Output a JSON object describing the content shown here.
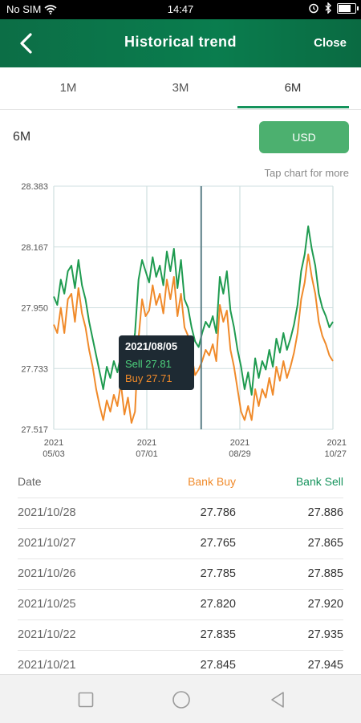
{
  "status_bar": {
    "carrier": "No SIM",
    "time": "14:47",
    "battery_level": 0.85
  },
  "header": {
    "title": "Historical trend",
    "close_label": "Close"
  },
  "tabs": [
    {
      "label": "1M",
      "active": false
    },
    {
      "label": "3M",
      "active": false
    },
    {
      "label": "6M",
      "active": true
    }
  ],
  "controls": {
    "range_label": "6M",
    "currency_label": "USD",
    "hint": "Tap chart for more"
  },
  "tooltip": {
    "date": "2021/08/05",
    "sell_text": "Sell 27.81",
    "buy_text": "Buy 27.71"
  },
  "table": {
    "headers": {
      "date": "Date",
      "buy": "Bank Buy",
      "sell": "Bank Sell"
    },
    "rows": [
      {
        "date": "2021/10/28",
        "buy": "27.786",
        "sell": "27.886"
      },
      {
        "date": "2021/10/27",
        "buy": "27.765",
        "sell": "27.865"
      },
      {
        "date": "2021/10/26",
        "buy": "27.785",
        "sell": "27.885"
      },
      {
        "date": "2021/10/25",
        "buy": "27.820",
        "sell": "27.920"
      },
      {
        "date": "2021/10/22",
        "buy": "27.835",
        "sell": "27.935"
      },
      {
        "date": "2021/10/21",
        "buy": "27.845",
        "sell": "27.945"
      }
    ]
  },
  "colors": {
    "brand_green": "#0a7d4e",
    "sell": "#1f9b50",
    "buy": "#f08a2a",
    "button": "#4cb06f"
  },
  "chart_data": {
    "type": "line",
    "y_ticks": [
      "28.383",
      "28.167",
      "27.950",
      "27.733",
      "27.517"
    ],
    "ylim": [
      27.517,
      28.383
    ],
    "x_ticks": [
      {
        "line1": "2021",
        "line2": "05/03"
      },
      {
        "line1": "2021",
        "line2": "07/01"
      },
      {
        "line1": "2021",
        "line2": "08/29"
      },
      {
        "line1": "2021",
        "line2": "10/27"
      }
    ],
    "x_start": "2021/05/03",
    "x_end": "2021/10/28",
    "selected_date": "2021/08/05",
    "grid": true,
    "series": [
      {
        "key": "sell",
        "color": "#1f9b50",
        "values": [
          27.99,
          27.96,
          28.05,
          28.0,
          28.08,
          28.1,
          28.02,
          28.12,
          28.03,
          27.98,
          27.9,
          27.84,
          27.78,
          27.72,
          27.66,
          27.74,
          27.7,
          27.76,
          27.72,
          27.78,
          27.74,
          27.8,
          27.78,
          27.86,
          28.05,
          28.12,
          28.08,
          28.04,
          28.13,
          28.06,
          28.1,
          28.03,
          28.15,
          28.08,
          28.16,
          28.02,
          28.12,
          27.98,
          27.95,
          27.88,
          27.83,
          27.81,
          27.86,
          27.9,
          27.88,
          27.92,
          27.86,
          28.06,
          28.0,
          28.08,
          27.94,
          27.88,
          27.8,
          27.74,
          27.66,
          27.72,
          27.64,
          27.77,
          27.7,
          27.76,
          27.73,
          27.8,
          27.74,
          27.84,
          27.79,
          27.86,
          27.8,
          27.84,
          27.89,
          27.96,
          28.08,
          28.14,
          28.24,
          28.16,
          28.1,
          28.0,
          27.95,
          27.92,
          27.88,
          27.9
        ]
      },
      {
        "key": "buy",
        "color": "#f08a2a",
        "values": [
          27.89,
          27.86,
          27.95,
          27.86,
          27.98,
          28.0,
          27.9,
          28.02,
          27.93,
          27.88,
          27.8,
          27.74,
          27.66,
          27.6,
          27.55,
          27.62,
          27.58,
          27.64,
          27.6,
          27.68,
          27.57,
          27.63,
          27.54,
          27.58,
          27.84,
          27.98,
          27.92,
          27.94,
          28.03,
          27.96,
          28.0,
          27.93,
          28.05,
          27.98,
          28.06,
          27.92,
          28.0,
          27.88,
          27.85,
          27.78,
          27.71,
          27.73,
          27.76,
          27.8,
          27.78,
          27.82,
          27.76,
          27.96,
          27.9,
          27.94,
          27.8,
          27.74,
          27.66,
          27.58,
          27.55,
          27.6,
          27.55,
          27.66,
          27.6,
          27.66,
          27.63,
          27.7,
          27.64,
          27.74,
          27.69,
          27.76,
          27.7,
          27.74,
          27.79,
          27.86,
          27.98,
          28.04,
          28.14,
          28.06,
          28.0,
          27.9,
          27.85,
          27.82,
          27.78,
          27.76
        ]
      }
    ]
  }
}
